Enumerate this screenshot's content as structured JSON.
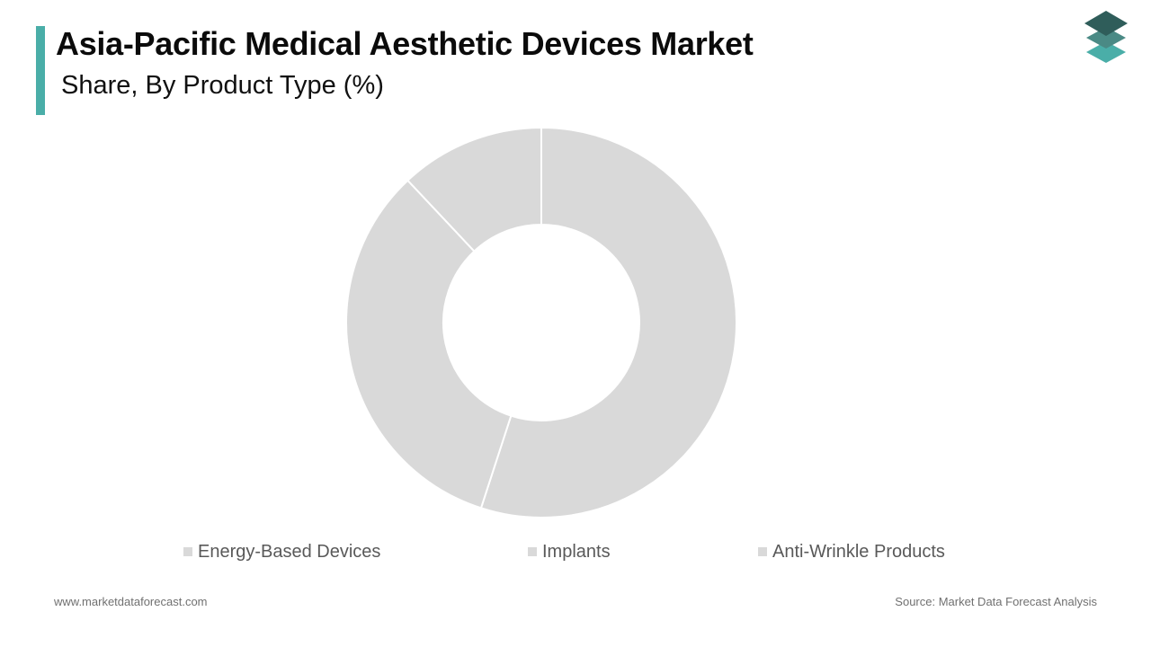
{
  "header": {
    "title": "Asia-Pacific Medical Aesthetic Devices Market",
    "subtitle": "Share, By Product Type (%)"
  },
  "logo": {
    "icon": "stacked-layers-logo-icon",
    "colors": [
      "#2f5d5a",
      "#4a8a85",
      "#4aaea8"
    ]
  },
  "chart_data": {
    "type": "pie",
    "variant": "donut",
    "categories": [
      "Energy-Based Devices",
      "Implants",
      "Anti-Wrinkle Products"
    ],
    "values": [
      55,
      33,
      12
    ],
    "unit": "%",
    "data_labels": "none",
    "slice_color": "#d9d9d9",
    "slice_border_color": "#ffffff",
    "start_angle_deg": 0,
    "direction": "clockwise",
    "legend_position": "bottom"
  },
  "legend": {
    "items": [
      {
        "label": "Energy-Based Devices"
      },
      {
        "label": "Implants"
      },
      {
        "label": "Anti-Wrinkle Products"
      }
    ]
  },
  "footer": {
    "website": "www.marketdataforecast.com",
    "source": "Source: Market Data Forecast Analysis"
  }
}
